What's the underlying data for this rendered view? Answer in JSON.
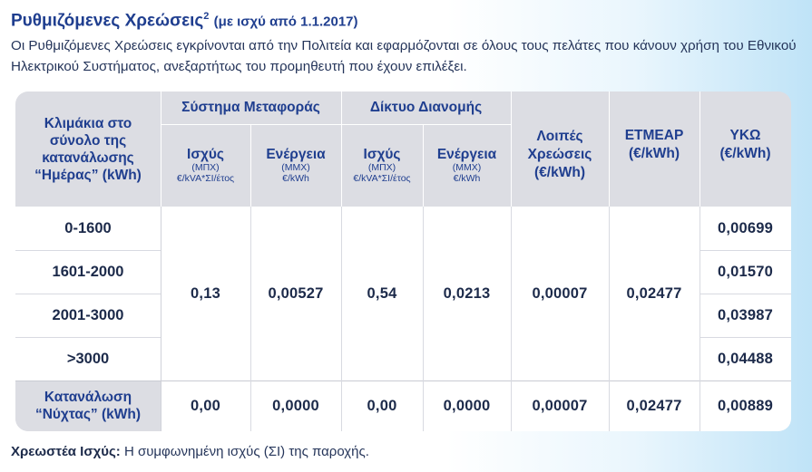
{
  "heading": {
    "title": "Ρυθμιζόμενες Χρεώσεις",
    "sup": "2",
    "subtitle": "(με ισχύ από 1.1.2017)"
  },
  "intro": "Οι Ρυθμιζόμενες Χρεώσεις εγκρίνονται από την Πολιτεία και εφαρμόζονται σε όλους τους πελάτες που κάνουν χρήση του Εθνικού Ηλεκτρικού Συστήματος, ανεξαρτήτως του προμηθευτή που έχουν επιλέξει.",
  "table": {
    "header": {
      "scale_label": "Κλιμάκια στο σύνολο της κατανάλωσης “Ημέρας” (kWh)",
      "transmission": "Σύστημα Μεταφοράς",
      "distribution": "Δίκτυο Διανομής",
      "power": "Ισχύς",
      "power_unit1": "(ΜΠΧ)",
      "power_unit2": "€/kVA*ΣΙ/έτος",
      "energy": "Ενέργεια",
      "energy_unit1": "(ΜΜΧ)",
      "energy_unit2": "€/kWh",
      "other": "Λοιπές Χρεώσεις",
      "other_unit": "(€/kWh)",
      "etmear": "ΕΤΜΕΑΡ",
      "etmear_unit": "(€/kWh)",
      "yko": "ΥΚΩ",
      "yko_unit": "(€/kWh)"
    },
    "day_rows": [
      {
        "label": "0-1600",
        "yko": "0,00699"
      },
      {
        "label": "1601-2000",
        "yko": "0,01570"
      },
      {
        "label": "2001-3000",
        "yko": "0,03987"
      },
      {
        "label": ">3000",
        "yko": "0,04488"
      }
    ],
    "day_shared": {
      "trans_power": "0,13",
      "trans_energy": "0,00527",
      "dist_power": "0,54",
      "dist_energy": "0,0213",
      "other": "0,00007",
      "etmear": "0,02477"
    },
    "night": {
      "label": "Κατανάλωση “Νύχτας” (kWh)",
      "trans_power": "0,00",
      "trans_energy": "0,0000",
      "dist_power": "0,00",
      "dist_energy": "0,0000",
      "other": "0,00007",
      "etmear": "0,02477",
      "yko": "0,00889"
    }
  },
  "footnote": {
    "term": "Χρεωστέα Ισχύς:",
    "text": " Η συμφωνημένη ισχύς (ΣΙ) της παροχής."
  }
}
